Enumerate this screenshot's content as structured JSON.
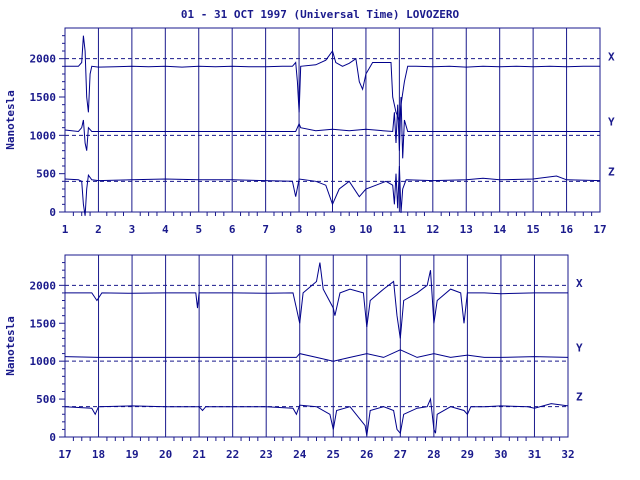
{
  "title": "01 - 31 OCT 1997 (Universal Time) LOVOZERO",
  "colors": {
    "ink": "#1a1a8c",
    "trace": "#00008b",
    "background": "#ffffff"
  },
  "chart_data": [
    {
      "type": "line",
      "panel": "top",
      "ylabel": "Nanotesla",
      "ylim": [
        0,
        2400
      ],
      "yticks": [
        0,
        500,
        1000,
        1500,
        2000
      ],
      "xlim": [
        1,
        17
      ],
      "xticks": [
        1,
        2,
        3,
        4,
        5,
        6,
        7,
        8,
        9,
        10,
        11,
        12,
        13,
        14,
        15,
        16,
        17
      ],
      "reference_levels": [
        2000,
        1000,
        400
      ],
      "grid": "vertical-day-lines",
      "series": [
        {
          "name": "X",
          "baseline": 1900,
          "points": [
            [
              1,
              1900
            ],
            [
              1.4,
              1900
            ],
            [
              1.5,
              1950
            ],
            [
              1.55,
              2300
            ],
            [
              1.6,
              2100
            ],
            [
              1.65,
              1500
            ],
            [
              1.7,
              1300
            ],
            [
              1.75,
              1800
            ],
            [
              1.8,
              1900
            ],
            [
              2,
              1890
            ],
            [
              2.5,
              1895
            ],
            [
              3,
              1900
            ],
            [
              3.5,
              1895
            ],
            [
              4,
              1900
            ],
            [
              4.5,
              1890
            ],
            [
              5,
              1900
            ],
            [
              5.5,
              1895
            ],
            [
              6,
              1900
            ],
            [
              6.5,
              1895
            ],
            [
              7,
              1895
            ],
            [
              7.5,
              1900
            ],
            [
              7.8,
              1900
            ],
            [
              7.9,
              1950
            ],
            [
              7.95,
              1700
            ],
            [
              8.0,
              1300
            ],
            [
              8.05,
              1900
            ],
            [
              8.5,
              1920
            ],
            [
              8.8,
              1980
            ],
            [
              9.0,
              2100
            ],
            [
              9.1,
              1950
            ],
            [
              9.3,
              1900
            ],
            [
              9.5,
              1940
            ],
            [
              9.7,
              2000
            ],
            [
              9.8,
              1700
            ],
            [
              9.9,
              1600
            ],
            [
              10.0,
              1800
            ],
            [
              10.2,
              1950
            ],
            [
              10.5,
              1950
            ],
            [
              10.75,
              1950
            ],
            [
              10.8,
              1500
            ],
            [
              10.9,
              1300
            ],
            [
              11.0,
              1200
            ],
            [
              11.05,
              1400
            ],
            [
              11.15,
              1700
            ],
            [
              11.25,
              1900
            ],
            [
              11.5,
              1900
            ],
            [
              12,
              1895
            ],
            [
              12.5,
              1900
            ],
            [
              13,
              1890
            ],
            [
              13.5,
              1900
            ],
            [
              14,
              1895
            ],
            [
              14.5,
              1900
            ],
            [
              15,
              1895
            ],
            [
              15.5,
              1900
            ],
            [
              16,
              1895
            ],
            [
              16.5,
              1900
            ],
            [
              17,
              1900
            ]
          ]
        },
        {
          "name": "Y",
          "baseline": 1050,
          "points": [
            [
              1,
              1070
            ],
            [
              1.4,
              1050
            ],
            [
              1.5,
              1100
            ],
            [
              1.55,
              1200
            ],
            [
              1.6,
              900
            ],
            [
              1.65,
              800
            ],
            [
              1.7,
              1100
            ],
            [
              1.8,
              1050
            ],
            [
              2,
              1050
            ],
            [
              3,
              1050
            ],
            [
              4,
              1050
            ],
            [
              5,
              1050
            ],
            [
              6,
              1050
            ],
            [
              7,
              1050
            ],
            [
              7.9,
              1050
            ],
            [
              8.0,
              1150
            ],
            [
              8.05,
              1100
            ],
            [
              8.5,
              1060
            ],
            [
              9.0,
              1080
            ],
            [
              9.5,
              1060
            ],
            [
              10.0,
              1080
            ],
            [
              10.5,
              1060
            ],
            [
              10.8,
              1050
            ],
            [
              10.85,
              1300
            ],
            [
              10.9,
              900
            ],
            [
              10.95,
              1400
            ],
            [
              11.0,
              800
            ],
            [
              11.05,
              1500
            ],
            [
              11.1,
              700
            ],
            [
              11.15,
              1200
            ],
            [
              11.25,
              1050
            ],
            [
              12,
              1050
            ],
            [
              13,
              1050
            ],
            [
              14,
              1050
            ],
            [
              15,
              1050
            ],
            [
              16,
              1050
            ],
            [
              17,
              1050
            ]
          ]
        },
        {
          "name": "Z",
          "baseline": 400,
          "points": [
            [
              1,
              430
            ],
            [
              1.4,
              420
            ],
            [
              1.5,
              400
            ],
            [
              1.55,
              100
            ],
            [
              1.6,
              -50
            ],
            [
              1.65,
              300
            ],
            [
              1.7,
              480
            ],
            [
              1.8,
              420
            ],
            [
              2,
              410
            ],
            [
              3,
              420
            ],
            [
              4,
              430
            ],
            [
              5,
              420
            ],
            [
              6,
              420
            ],
            [
              7,
              410
            ],
            [
              7.8,
              400
            ],
            [
              7.9,
              200
            ],
            [
              8.0,
              430
            ],
            [
              8.5,
              400
            ],
            [
              8.8,
              350
            ],
            [
              9.0,
              100
            ],
            [
              9.2,
              300
            ],
            [
              9.5,
              400
            ],
            [
              9.8,
              200
            ],
            [
              10.0,
              300
            ],
            [
              10.3,
              350
            ],
            [
              10.6,
              400
            ],
            [
              10.8,
              350
            ],
            [
              10.85,
              100
            ],
            [
              10.9,
              500
            ],
            [
              10.95,
              50
            ],
            [
              11.0,
              600
            ],
            [
              11.05,
              -10
            ],
            [
              11.1,
              300
            ],
            [
              11.2,
              420
            ],
            [
              12,
              410
            ],
            [
              13,
              420
            ],
            [
              13.5,
              440
            ],
            [
              14,
              420
            ],
            [
              15,
              430
            ],
            [
              15.7,
              470
            ],
            [
              16,
              420
            ],
            [
              17,
              410
            ]
          ]
        }
      ]
    },
    {
      "type": "line",
      "panel": "bottom",
      "ylabel": "Nanotesla",
      "ylim": [
        0,
        2400
      ],
      "yticks": [
        0,
        500,
        1000,
        1500,
        2000
      ],
      "xlim": [
        17,
        32
      ],
      "xticks": [
        17,
        18,
        19,
        20,
        21,
        22,
        23,
        24,
        25,
        26,
        27,
        28,
        29,
        30,
        31,
        32
      ],
      "reference_levels": [
        2000,
        1000,
        400
      ],
      "grid": "vertical-day-lines",
      "series": [
        {
          "name": "X",
          "baseline": 1900,
          "points": [
            [
              17,
              1900
            ],
            [
              17.8,
              1900
            ],
            [
              17.95,
              1800
            ],
            [
              18.1,
              1900
            ],
            [
              19,
              1895
            ],
            [
              20,
              1900
            ],
            [
              20.9,
              1900
            ],
            [
              20.95,
              1700
            ],
            [
              21.0,
              1900
            ],
            [
              22,
              1900
            ],
            [
              23,
              1895
            ],
            [
              23.8,
              1900
            ],
            [
              23.9,
              1700
            ],
            [
              24.0,
              1500
            ],
            [
              24.1,
              1900
            ],
            [
              24.5,
              2050
            ],
            [
              24.6,
              2300
            ],
            [
              24.7,
              1950
            ],
            [
              25.0,
              1700
            ],
            [
              25.05,
              1600
            ],
            [
              25.2,
              1900
            ],
            [
              25.5,
              1950
            ],
            [
              25.9,
              1900
            ],
            [
              26.0,
              1450
            ],
            [
              26.1,
              1800
            ],
            [
              26.5,
              1950
            ],
            [
              26.8,
              2050
            ],
            [
              26.9,
              1600
            ],
            [
              27.0,
              1300
            ],
            [
              27.1,
              1800
            ],
            [
              27.5,
              1900
            ],
            [
              27.8,
              2000
            ],
            [
              27.9,
              2200
            ],
            [
              28.0,
              1500
            ],
            [
              28.1,
              1800
            ],
            [
              28.5,
              1950
            ],
            [
              28.8,
              1900
            ],
            [
              28.9,
              1500
            ],
            [
              29.0,
              1900
            ],
            [
              29.5,
              1900
            ],
            [
              30,
              1890
            ],
            [
              31,
              1900
            ],
            [
              32,
              1900
            ]
          ]
        },
        {
          "name": "Y",
          "baseline": 1050,
          "points": [
            [
              17,
              1060
            ],
            [
              18,
              1050
            ],
            [
              19,
              1050
            ],
            [
              20,
              1050
            ],
            [
              21,
              1050
            ],
            [
              22,
              1050
            ],
            [
              23,
              1050
            ],
            [
              23.9,
              1050
            ],
            [
              24.0,
              1100
            ],
            [
              24.5,
              1050
            ],
            [
              25.0,
              1000
            ],
            [
              25.5,
              1050
            ],
            [
              26.0,
              1100
            ],
            [
              26.5,
              1050
            ],
            [
              27.0,
              1150
            ],
            [
              27.5,
              1050
            ],
            [
              28.0,
              1100
            ],
            [
              28.5,
              1050
            ],
            [
              29.0,
              1080
            ],
            [
              29.5,
              1050
            ],
            [
              30,
              1050
            ],
            [
              31,
              1060
            ],
            [
              32,
              1050
            ]
          ]
        },
        {
          "name": "Z",
          "baseline": 400,
          "points": [
            [
              17,
              400
            ],
            [
              17.8,
              380
            ],
            [
              17.9,
              300
            ],
            [
              18.0,
              400
            ],
            [
              19,
              410
            ],
            [
              20,
              400
            ],
            [
              21,
              400
            ],
            [
              21.1,
              350
            ],
            [
              21.2,
              400
            ],
            [
              22,
              400
            ],
            [
              23,
              400
            ],
            [
              23.8,
              380
            ],
            [
              23.9,
              300
            ],
            [
              24.0,
              420
            ],
            [
              24.5,
              400
            ],
            [
              24.9,
              300
            ],
            [
              25.0,
              100
            ],
            [
              25.1,
              350
            ],
            [
              25.5,
              400
            ],
            [
              25.95,
              150
            ],
            [
              26.0,
              20
            ],
            [
              26.1,
              350
            ],
            [
              26.5,
              400
            ],
            [
              26.8,
              350
            ],
            [
              26.9,
              100
            ],
            [
              27.0,
              50
            ],
            [
              27.1,
              300
            ],
            [
              27.5,
              380
            ],
            [
              27.8,
              400
            ],
            [
              27.9,
              500
            ],
            [
              28.0,
              100
            ],
            [
              28.05,
              50
            ],
            [
              28.1,
              300
            ],
            [
              28.5,
              400
            ],
            [
              28.9,
              350
            ],
            [
              29.0,
              300
            ],
            [
              29.1,
              400
            ],
            [
              29.5,
              400
            ],
            [
              30,
              410
            ],
            [
              30.8,
              400
            ],
            [
              31,
              380
            ],
            [
              31.5,
              440
            ],
            [
              32,
              410
            ]
          ]
        }
      ]
    }
  ]
}
